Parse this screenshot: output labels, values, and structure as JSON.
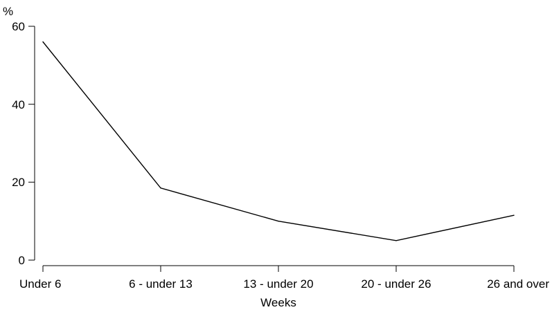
{
  "chart_data": {
    "type": "line",
    "categories": [
      "Under 6",
      "6 - under 13",
      "13 - under 20",
      "20 - under 26",
      "26 and over"
    ],
    "values": [
      56,
      18.5,
      10,
      5,
      11.5
    ],
    "xlabel": "Weeks",
    "ylabel": "%",
    "yticks": [
      "0",
      "20",
      "40",
      "60"
    ],
    "ylim": [
      0,
      60
    ],
    "grid": false,
    "legend": "none",
    "line_color": "#000000"
  }
}
